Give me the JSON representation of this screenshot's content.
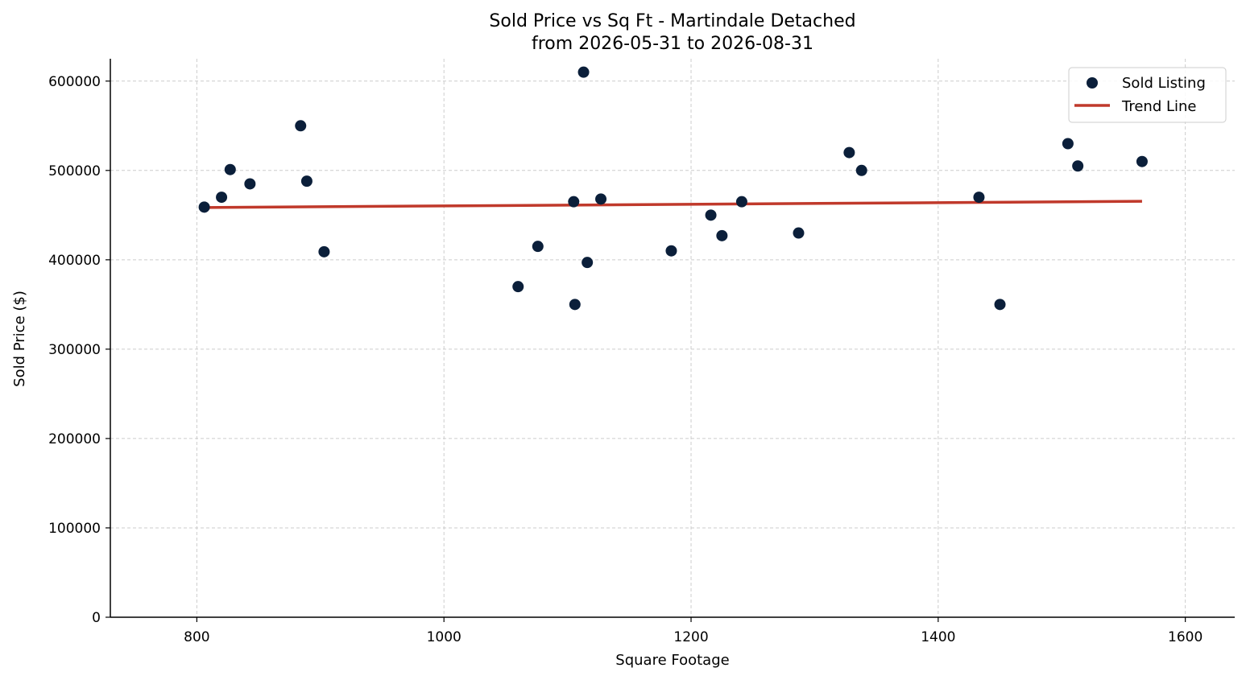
{
  "chart_data": {
    "type": "scatter",
    "title": "Sold Price vs Sq Ft - Martindale Detached",
    "subtitle": "from 2026-05-31 to 2026-08-31",
    "xlabel": "Square Footage",
    "ylabel": "Sold Price ($)",
    "xlim": [
      730,
      1640
    ],
    "ylim": [
      0,
      625000
    ],
    "xticks": [
      800,
      1000,
      1200,
      1400,
      1600
    ],
    "yticks": [
      0,
      100000,
      200000,
      300000,
      400000,
      500000,
      600000
    ],
    "grid": true,
    "legend_position": "top-right",
    "series": [
      {
        "name": "Sold Listing",
        "kind": "scatter",
        "color": "#0b1f3a",
        "points": [
          [
            806,
            459000
          ],
          [
            820,
            470000
          ],
          [
            827,
            501000
          ],
          [
            843,
            485000
          ],
          [
            884,
            550000
          ],
          [
            889,
            488000
          ],
          [
            903,
            409000
          ],
          [
            1060,
            370000
          ],
          [
            1076,
            415000
          ],
          [
            1105,
            465000
          ],
          [
            1106,
            350000
          ],
          [
            1113,
            610000
          ],
          [
            1116,
            397000
          ],
          [
            1127,
            468000
          ],
          [
            1184,
            410000
          ],
          [
            1216,
            450000
          ],
          [
            1225,
            427000
          ],
          [
            1241,
            465000
          ],
          [
            1287,
            430000
          ],
          [
            1328,
            520000
          ],
          [
            1338,
            500000
          ],
          [
            1433,
            470000
          ],
          [
            1450,
            350000
          ],
          [
            1505,
            530000
          ],
          [
            1513,
            505000
          ],
          [
            1565,
            510000
          ]
        ]
      },
      {
        "name": "Trend Line",
        "kind": "line",
        "color": "#c0392b",
        "points": [
          [
            806,
            458500
          ],
          [
            1565,
            465500
          ]
        ]
      }
    ]
  }
}
